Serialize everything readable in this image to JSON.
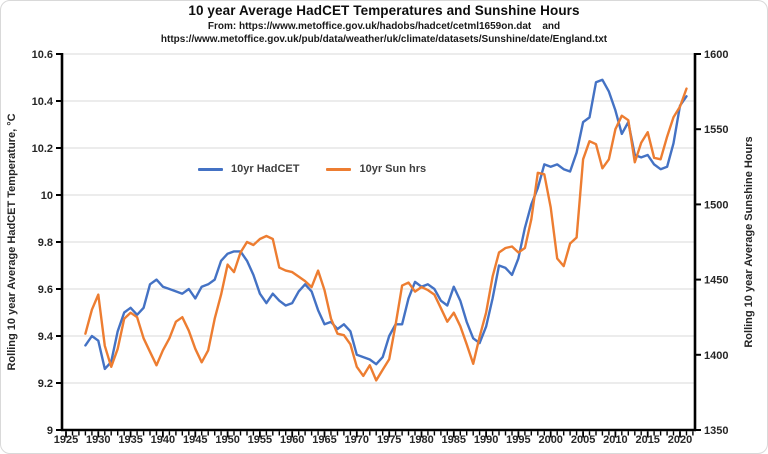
{
  "chart": {
    "title": "10 year Average HadCET Temperatures and Sunshine Hours",
    "subtitle_line1": "From: https://www.metoffice.gov.uk/hadobs/hadcet/cetml1659on.dat    and",
    "subtitle_line2": "https://www.metoffice.gov.uk/pub/data/weather/uk/climate/datasets/Sunshine/date/England.txt"
  },
  "chart_data": {
    "type": "line",
    "title": "10 year Average HadCET Temperatures and Sunshine Hours",
    "x_axis": {
      "min": 1925,
      "max": 2020,
      "tick_step": 5,
      "minor_tick_step": 1,
      "ticks": [
        1925,
        1930,
        1935,
        1940,
        1945,
        1950,
        1955,
        1960,
        1965,
        1970,
        1975,
        1980,
        1985,
        1990,
        1995,
        2000,
        2005,
        2010,
        2015,
        2020
      ]
    },
    "left_axis": {
      "label": "Rolling 10 year Average HadCET Temperature, °C",
      "min": 9,
      "max": 10.6,
      "ticks": [
        "9",
        "9.2",
        "9.4",
        "9.6",
        "9.8",
        "10",
        "10.2",
        "10.4",
        "10.6"
      ]
    },
    "right_axis": {
      "label": "Rolling 10 year Average Sunshine Hours",
      "min": 1350,
      "max": 1600,
      "ticks": [
        "1350",
        "1400",
        "1450",
        "1500",
        "1550",
        "1600"
      ]
    },
    "grid": "horizontal-only",
    "legend_position": "inside-upper-left",
    "x": [
      1928,
      1929,
      1930,
      1931,
      1932,
      1933,
      1934,
      1935,
      1936,
      1937,
      1938,
      1939,
      1940,
      1941,
      1942,
      1943,
      1944,
      1945,
      1946,
      1947,
      1948,
      1949,
      1950,
      1951,
      1952,
      1953,
      1954,
      1955,
      1956,
      1957,
      1958,
      1959,
      1960,
      1961,
      1962,
      1963,
      1964,
      1965,
      1966,
      1967,
      1968,
      1969,
      1970,
      1971,
      1972,
      1973,
      1974,
      1975,
      1976,
      1977,
      1978,
      1979,
      1980,
      1981,
      1982,
      1983,
      1984,
      1985,
      1986,
      1987,
      1988,
      1989,
      1990,
      1991,
      1992,
      1993,
      1994,
      1995,
      1996,
      1997,
      1998,
      1999,
      2000,
      2001,
      2002,
      2003,
      2004,
      2005,
      2006,
      2007,
      2008,
      2009,
      2010,
      2011,
      2012,
      2013,
      2014,
      2015,
      2016,
      2017,
      2018,
      2019,
      2020,
      2021
    ],
    "series": [
      {
        "name": "10yr HadCET",
        "axis": "left",
        "color": "#4472C4",
        "values": [
          9.36,
          9.4,
          9.38,
          9.26,
          9.29,
          9.42,
          9.5,
          9.52,
          9.49,
          9.52,
          9.62,
          9.64,
          9.61,
          9.6,
          9.59,
          9.58,
          9.6,
          9.56,
          9.61,
          9.62,
          9.64,
          9.72,
          9.75,
          9.76,
          9.76,
          9.72,
          9.66,
          9.58,
          9.54,
          9.58,
          9.55,
          9.53,
          9.54,
          9.59,
          9.62,
          9.59,
          9.51,
          9.45,
          9.46,
          9.43,
          9.45,
          9.42,
          9.32,
          9.31,
          9.3,
          9.28,
          9.31,
          9.4,
          9.45,
          9.45,
          9.56,
          9.63,
          9.61,
          9.62,
          9.6,
          9.55,
          9.53,
          9.61,
          9.55,
          9.46,
          9.39,
          9.37,
          9.44,
          9.56,
          9.7,
          9.69,
          9.66,
          9.73,
          9.86,
          9.96,
          10.03,
          10.13,
          10.12,
          10.13,
          10.11,
          10.1,
          10.18,
          10.31,
          10.33,
          10.48,
          10.49,
          10.44,
          10.36,
          10.26,
          10.31,
          10.17,
          10.16,
          10.17,
          10.13,
          10.11,
          10.12,
          10.22,
          10.38,
          10.42
        ]
      },
      {
        "name": "10yr Sun hrs",
        "axis": "right",
        "color": "#ED7D31",
        "values": [
          1414,
          1430,
          1440,
          1406,
          1392,
          1404,
          1424,
          1428,
          1425,
          1411,
          1402,
          1393,
          1403,
          1411,
          1422,
          1425,
          1416,
          1404,
          1395,
          1403,
          1424,
          1440,
          1460,
          1455,
          1468,
          1475,
          1473,
          1477,
          1479,
          1477,
          1458,
          1456,
          1455,
          1452,
          1449,
          1445,
          1456,
          1443,
          1424,
          1414,
          1413,
          1407,
          1392,
          1386,
          1393,
          1383,
          1390,
          1397,
          1420,
          1446,
          1448,
          1442,
          1445,
          1443,
          1440,
          1431,
          1422,
          1428,
          1419,
          1407,
          1394,
          1412,
          1428,
          1452,
          1468,
          1471,
          1472,
          1468,
          1471,
          1490,
          1521,
          1520,
          1498,
          1464,
          1459,
          1474,
          1478,
          1530,
          1542,
          1540,
          1524,
          1530,
          1550,
          1559,
          1556,
          1528,
          1541,
          1548,
          1531,
          1530,
          1545,
          1558,
          1565,
          1577
        ]
      }
    ],
    "colors": {
      "gridline": "#D9D9D9",
      "axis": "#000000",
      "tick_text": "#262626",
      "legend_text": "#3F3F3F"
    }
  }
}
